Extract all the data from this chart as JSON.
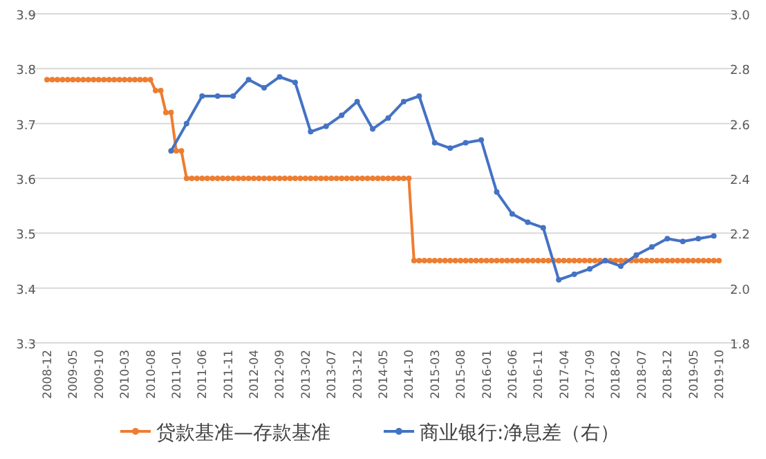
{
  "chart_data": {
    "type": "line",
    "categories": [
      "2008-12",
      null,
      null,
      null,
      null,
      "2009-05",
      null,
      null,
      null,
      null,
      "2009-10",
      null,
      null,
      null,
      null,
      "2010-03",
      null,
      null,
      null,
      null,
      "2010-08",
      null,
      null,
      null,
      null,
      "2011-01",
      null,
      null,
      null,
      null,
      "2011-06",
      null,
      null,
      null,
      null,
      "2011-11",
      null,
      null,
      null,
      null,
      "2012-04",
      null,
      null,
      null,
      null,
      "2012-09",
      null,
      null,
      null,
      null,
      "2013-02",
      null,
      null,
      null,
      null,
      "2013-07",
      null,
      null,
      null,
      null,
      "2013-12",
      null,
      null,
      null,
      null,
      "2014-05",
      null,
      null,
      null,
      null,
      "2014-10",
      null,
      null,
      null,
      null,
      "2015-03",
      null,
      null,
      null,
      null,
      "2015-08",
      null,
      null,
      null,
      null,
      "2016-01",
      null,
      null,
      null,
      null,
      "2016-06",
      null,
      null,
      null,
      null,
      "2016-11",
      null,
      null,
      null,
      null,
      "2017-04",
      null,
      null,
      null,
      null,
      "2017-09",
      null,
      null,
      null,
      null,
      "2018-02",
      null,
      null,
      null,
      null,
      "2018-07",
      null,
      null,
      null,
      null,
      "2018-12",
      null,
      null,
      null,
      null,
      "2019-05",
      null,
      null,
      null,
      null,
      "2019-10"
    ],
    "series": [
      {
        "name": "贷款基准—存款基准",
        "color": "#ed7d31",
        "values": [
          3.78,
          3.78,
          3.78,
          3.78,
          3.78,
          3.78,
          3.78,
          3.78,
          3.78,
          3.78,
          3.78,
          3.78,
          3.78,
          3.78,
          3.78,
          3.78,
          3.78,
          3.78,
          3.78,
          3.78,
          3.78,
          3.76,
          3.76,
          3.72,
          3.72,
          3.65,
          3.65,
          3.6,
          3.6,
          3.6,
          3.6,
          3.6,
          3.6,
          3.6,
          3.6,
          3.6,
          3.6,
          3.6,
          3.6,
          3.6,
          3.6,
          3.6,
          3.6,
          3.6,
          3.6,
          3.6,
          3.6,
          3.6,
          3.6,
          3.6,
          3.6,
          3.6,
          3.6,
          3.6,
          3.6,
          3.6,
          3.6,
          3.6,
          3.6,
          3.6,
          3.6,
          3.6,
          3.6,
          3.6,
          3.6,
          3.6,
          3.6,
          3.6,
          3.6,
          3.6,
          3.6,
          3.45,
          3.45,
          3.45,
          3.45,
          3.45,
          3.45,
          3.45,
          3.45,
          3.45,
          3.45,
          3.45,
          3.45,
          3.45,
          3.45,
          3.45,
          3.45,
          3.45,
          3.45,
          3.45,
          3.45,
          3.45,
          3.45,
          3.45,
          3.45,
          3.45,
          3.45,
          3.45,
          3.45,
          3.45,
          3.45,
          3.45,
          3.45,
          3.45,
          3.45,
          3.45,
          3.45,
          3.45,
          3.45,
          3.45,
          3.45,
          3.45,
          3.45,
          3.45,
          3.45,
          3.45,
          3.45,
          3.45,
          3.45,
          3.45,
          3.45,
          3.45,
          3.45,
          3.45,
          3.45,
          3.45,
          3.45,
          3.45,
          3.45,
          3.45,
          3.45
        ]
      },
      {
        "name": "商业银行:净息差（右）",
        "color": "#4472c4",
        "axis": "y2",
        "values": [
          null,
          null,
          null,
          null,
          null,
          null,
          null,
          null,
          null,
          null,
          null,
          null,
          null,
          null,
          null,
          null,
          null,
          null,
          null,
          null,
          null,
          null,
          null,
          null,
          2.5,
          null,
          null,
          2.6,
          null,
          null,
          2.7,
          null,
          null,
          2.7,
          null,
          null,
          2.7,
          null,
          null,
          2.76,
          null,
          null,
          2.73,
          null,
          null,
          2.77,
          null,
          null,
          2.75,
          null,
          null,
          2.57,
          null,
          null,
          2.59,
          null,
          null,
          2.63,
          null,
          null,
          2.68,
          null,
          null,
          2.58,
          null,
          null,
          2.62,
          null,
          null,
          2.68,
          null,
          null,
          2.7,
          null,
          null,
          2.53,
          null,
          null,
          2.51,
          null,
          null,
          2.53,
          null,
          null,
          2.54,
          null,
          null,
          2.35,
          null,
          null,
          2.27,
          null,
          null,
          2.24,
          null,
          null,
          2.22,
          null,
          null,
          2.03,
          null,
          null,
          2.05,
          null,
          null,
          2.07,
          null,
          null,
          2.1,
          null,
          null,
          2.08,
          null,
          null,
          2.12,
          null,
          null,
          2.15,
          null,
          null,
          2.18,
          null,
          null,
          2.17,
          null,
          null,
          2.18,
          null,
          null,
          2.19,
          null
        ]
      }
    ],
    "ylim": [
      3.3,
      3.9
    ],
    "yticks": [
      3.3,
      3.4,
      3.5,
      3.6,
      3.7,
      3.8,
      3.9
    ],
    "y2lim": [
      1.8,
      3.0
    ],
    "y2ticks": [
      1.8,
      {
        "value": 2,
        "label": "2.0"
      },
      2.2,
      2.4,
      2.6,
      2.8,
      {
        "value": 3,
        "label": "3.0"
      }
    ],
    "grid": "y",
    "legend": "bottom",
    "marker": "circle",
    "line_style": "solid"
  }
}
